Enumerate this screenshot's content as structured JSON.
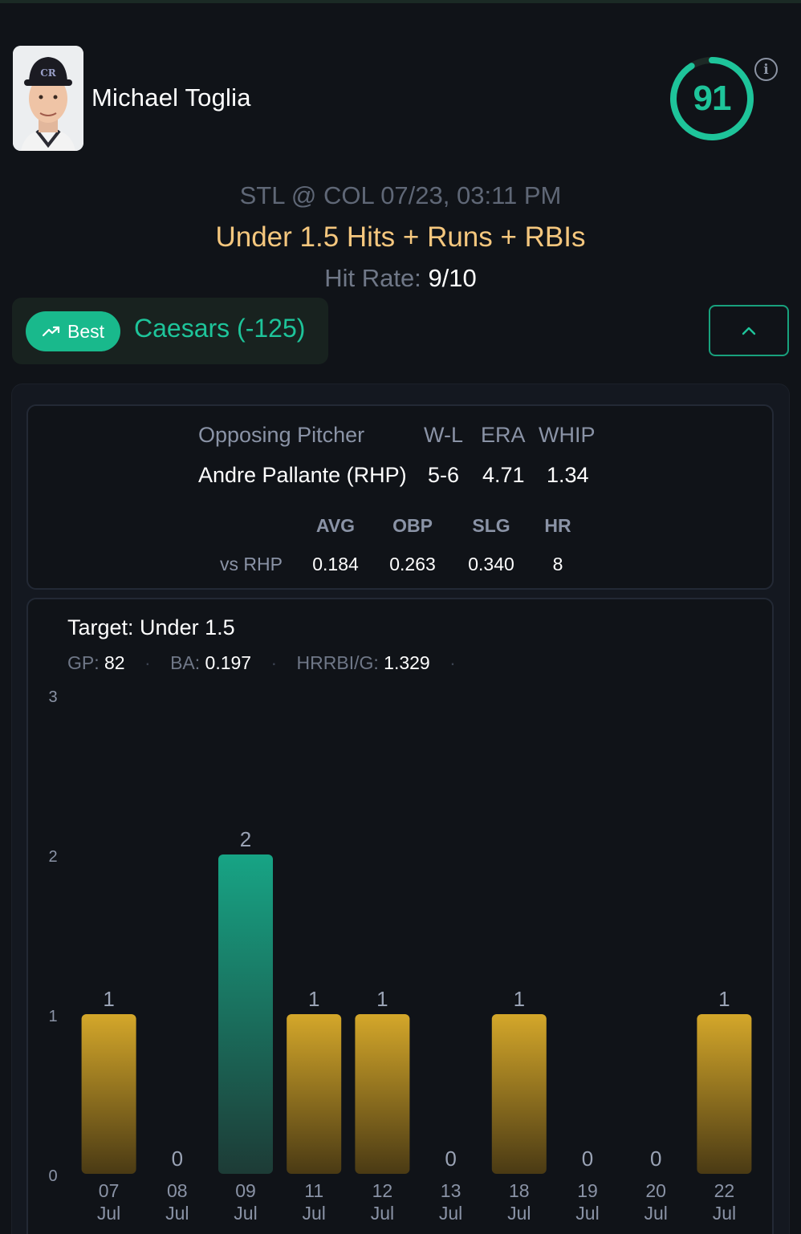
{
  "player": {
    "name": "Michael Toglia",
    "avatar_icon": "player-headshot-rockies-cap",
    "score": "91",
    "score_fraction": 0.91,
    "score_color": "#1ec49a"
  },
  "game": {
    "matchup": "STL @ COL 07/23, 03:11 PM",
    "prop": "Under 1.5 Hits + Runs + RBIs",
    "hit_rate_label": "Hit Rate:",
    "hit_rate_value": "9/10"
  },
  "odds": {
    "badge_label": "Best",
    "badge_icon": "trending-up-icon",
    "book": "Caesars (-125)",
    "collapse_icon": "chevron-up-icon"
  },
  "pitcher": {
    "headers": [
      "Opposing Pitcher",
      "W-L",
      "ERA",
      "WHIP"
    ],
    "name": "Andre Pallante (RHP)",
    "wl": "5-6",
    "era": "4.71",
    "whip": "1.34",
    "split_headers": [
      "AVG",
      "OBP",
      "SLG",
      "HR"
    ],
    "split_label": "vs RHP",
    "split_values": [
      "0.184",
      "0.263",
      "0.340",
      "8"
    ]
  },
  "summary": {
    "target": "Target: Under 1.5",
    "gp_label": "GP:",
    "gp": "82",
    "ba_label": "BA:",
    "ba": "0.197",
    "hrrbi_label": "HRRBI/G:",
    "hrrbi": "1.329",
    "separator": "·"
  },
  "chart_data": {
    "type": "bar",
    "title": "",
    "xlabel": "",
    "ylabel": "",
    "ylim": [
      0,
      3
    ],
    "yticks": [
      0,
      1,
      2,
      3
    ],
    "threshold": 1.5,
    "categories": [
      {
        "day": "07",
        "month": "Jul"
      },
      {
        "day": "08",
        "month": "Jul"
      },
      {
        "day": "09",
        "month": "Jul"
      },
      {
        "day": "11",
        "month": "Jul"
      },
      {
        "day": "12",
        "month": "Jul"
      },
      {
        "day": "13",
        "month": "Jul"
      },
      {
        "day": "18",
        "month": "Jul"
      },
      {
        "day": "19",
        "month": "Jul"
      },
      {
        "day": "20",
        "month": "Jul"
      },
      {
        "day": "22",
        "month": "Jul"
      }
    ],
    "values": [
      1,
      0,
      2,
      1,
      1,
      0,
      1,
      0,
      0,
      1
    ],
    "colors": {
      "hit": "#d4a72a",
      "miss": "#17a485"
    }
  }
}
